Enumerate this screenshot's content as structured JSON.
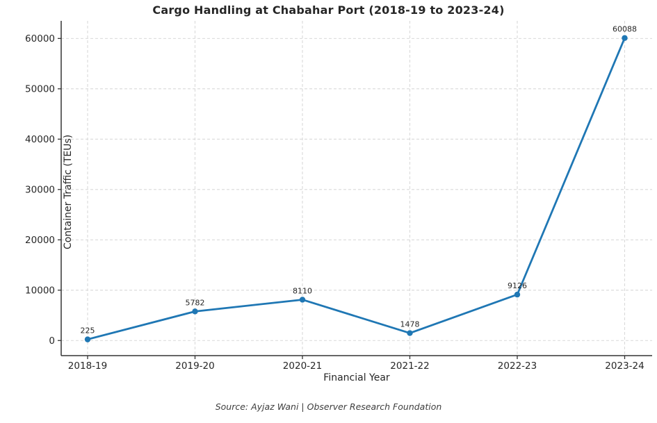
{
  "chart_data": {
    "type": "line",
    "title": "Cargo Handling at Chabahar Port (2018-19 to 2023-24)",
    "xlabel": "Financial Year",
    "ylabel": "Container Traffic (TEUs)",
    "categories": [
      "2018-19",
      "2019-20",
      "2020-21",
      "2021-22",
      "2022-23",
      "2023-24"
    ],
    "series": [
      {
        "name": "Container Traffic (TEUs)",
        "values": [
          225,
          5782,
          8110,
          1478,
          9126,
          60088
        ]
      }
    ],
    "data_labels": [
      "225",
      "5782",
      "8110",
      "1478",
      "9126",
      "60088"
    ],
    "ytick_values": [
      0,
      10000,
      20000,
      30000,
      40000,
      50000,
      60000
    ],
    "ytick_labels": [
      "0",
      "10000",
      "20000",
      "30000",
      "40000",
      "50000",
      "60000"
    ],
    "ylim": [
      -3000,
      63500
    ],
    "grid": "dashed-both",
    "legend": "none",
    "colors": {
      "line": "#1f77b4",
      "marker": "#1f77b4",
      "grid": "#d9d9d9",
      "spine": "#333333",
      "text": "#262626"
    }
  },
  "footer": {
    "source": "Source: Ayjaz Wani | Observer Research Foundation"
  }
}
